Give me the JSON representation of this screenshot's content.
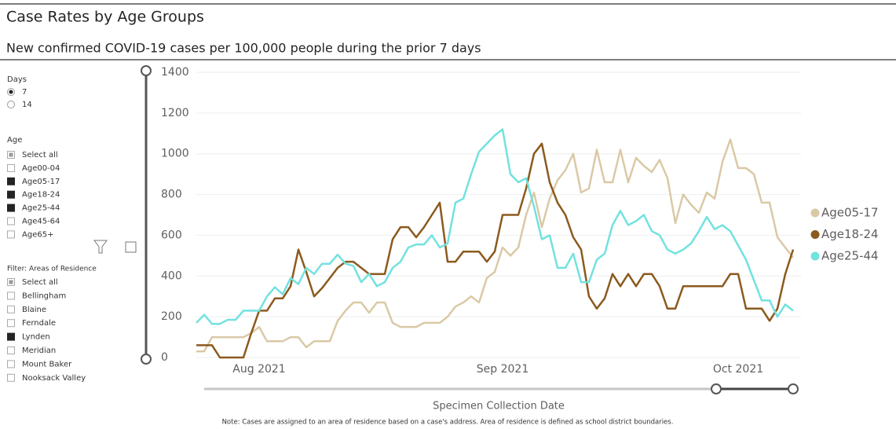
{
  "header": {
    "title": "Case Rates by Age Groups",
    "subtitle": "New confirmed COVID-19 cases per 100,000 people during the prior 7 days"
  },
  "filters": {
    "days": {
      "label": "Days",
      "options": [
        "7",
        "14"
      ],
      "selected": 0
    },
    "age": {
      "label": "Age",
      "options": [
        "Select all",
        "Age00-04",
        "Age05-17",
        "Age18-24",
        "Age25-44",
        "Age45-64",
        "Age65+"
      ],
      "checked": [
        "partial",
        false,
        true,
        true,
        true,
        false,
        false
      ]
    },
    "areas": {
      "label": "Filter: Areas of Residence",
      "options": [
        "Select all",
        "Bellingham",
        "Blaine",
        "Ferndale",
        "Lynden",
        "Meridian",
        "Mount Baker",
        "Nooksack Valley"
      ],
      "checked": [
        "partial",
        false,
        false,
        false,
        true,
        false,
        false,
        false
      ]
    }
  },
  "note": "Note: Cases are assigned to an area of residence based on a case's address. Area of residence is defined as school district boundaries.",
  "chart_data": {
    "type": "line",
    "x_label": "Specimen Collection Date",
    "categories": [
      null,
      null,
      null,
      null,
      null,
      null,
      null,
      null,
      "Aug 2021",
      null,
      null,
      null,
      null,
      null,
      null,
      null,
      null,
      null,
      null,
      null,
      null,
      null,
      null,
      null,
      null,
      null,
      null,
      null,
      null,
      null,
      null,
      null,
      null,
      null,
      null,
      null,
      null,
      null,
      null,
      "Sep 2021",
      null,
      null,
      null,
      null,
      null,
      null,
      null,
      null,
      null,
      null,
      null,
      null,
      null,
      null,
      null,
      null,
      null,
      null,
      null,
      null,
      null,
      null,
      null,
      null,
      null,
      null,
      null,
      null,
      null,
      "Oct 2021",
      null,
      null,
      null,
      null,
      null,
      null,
      null
    ],
    "series": [
      {
        "name": "Age05-17",
        "color": "#dac9a6",
        "values": [
          30,
          30,
          100,
          100,
          100,
          100,
          100,
          120,
          150,
          80,
          80,
          80,
          100,
          100,
          50,
          80,
          80,
          80,
          180,
          230,
          270,
          270,
          220,
          270,
          270,
          170,
          150,
          150,
          150,
          170,
          170,
          170,
          200,
          250,
          270,
          300,
          270,
          390,
          420,
          540,
          500,
          540,
          700,
          810,
          640,
          780,
          870,
          920,
          1000,
          810,
          830,
          1020,
          860,
          860,
          1020,
          860,
          980,
          940,
          910,
          970,
          880,
          660,
          800,
          750,
          710,
          810,
          780,
          960,
          1070,
          930,
          930,
          900,
          760,
          760,
          590,
          540,
          490
        ]
      },
      {
        "name": "Age18-24",
        "color": "#8b5a1e",
        "values": [
          60,
          60,
          60,
          0,
          0,
          0,
          0,
          120,
          230,
          230,
          290,
          290,
          350,
          530,
          420,
          300,
          340,
          390,
          440,
          470,
          470,
          440,
          410,
          410,
          410,
          580,
          640,
          640,
          590,
          640,
          700,
          760,
          470,
          470,
          520,
          520,
          520,
          470,
          520,
          700,
          700,
          700,
          830,
          1000,
          1050,
          860,
          760,
          700,
          590,
          530,
          300,
          240,
          290,
          410,
          350,
          410,
          350,
          410,
          410,
          350,
          240,
          240,
          350,
          350,
          350,
          350,
          350,
          350,
          410,
          410,
          240,
          240,
          240,
          180,
          240,
          410,
          530
        ]
      },
      {
        "name": "Age25-44",
        "color": "#72e2e0",
        "values": [
          170,
          210,
          165,
          165,
          185,
          185,
          230,
          230,
          230,
          300,
          345,
          310,
          390,
          360,
          440,
          410,
          460,
          460,
          505,
          460,
          450,
          370,
          410,
          350,
          370,
          440,
          470,
          540,
          555,
          555,
          600,
          540,
          560,
          760,
          780,
          900,
          1010,
          1050,
          1090,
          1120,
          900,
          860,
          880,
          740,
          580,
          600,
          440,
          440,
          510,
          370,
          370,
          480,
          510,
          650,
          720,
          650,
          670,
          700,
          620,
          600,
          530,
          510,
          530,
          560,
          620,
          690,
          630,
          650,
          620,
          550,
          480,
          380,
          280,
          280,
          200,
          260,
          230
        ]
      }
    ],
    "ylim": [
      0,
      1400
    ],
    "yticks": [
      0,
      200,
      400,
      600,
      800,
      1000,
      1200,
      1400
    ],
    "grid": true
  }
}
